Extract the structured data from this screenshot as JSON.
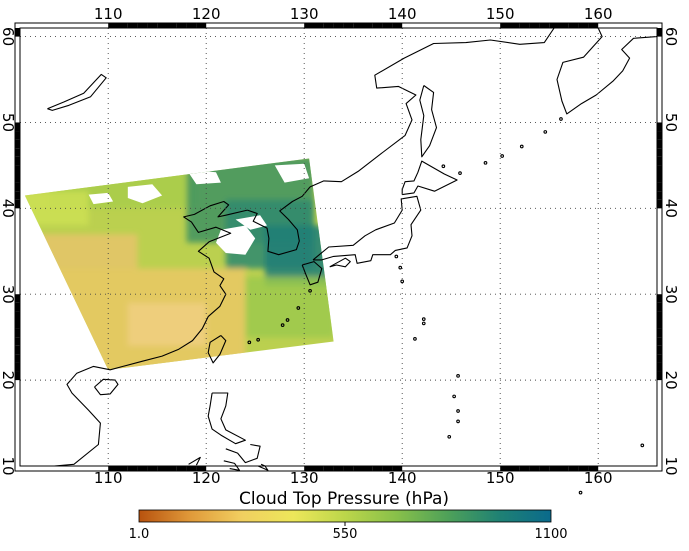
{
  "map": {
    "projection": "equirectangular",
    "lon_range": [
      101,
      166
    ],
    "lat_range": [
      10,
      61
    ],
    "lon_ticks": [
      "110",
      "120",
      "130",
      "140",
      "150",
      "160"
    ],
    "lat_ticks": [
      "10",
      "20",
      "30",
      "40",
      "50",
      "60"
    ],
    "grid": "dotted",
    "frame": "checkered-border",
    "swath_corners_lonlat": [
      [
        101.5,
        41.5
      ],
      [
        130.5,
        45.8
      ],
      [
        133,
        24.5
      ],
      [
        110,
        21.2
      ]
    ]
  },
  "colorbar": {
    "title": "Cloud Top Pressure (hPa)",
    "min_label": "1.0",
    "mid_label": "550",
    "max_label": "1100",
    "stops": [
      "#b8520e",
      "#e09a3a",
      "#f1cf60",
      "#ede75a",
      "#bcd64a",
      "#88c04a",
      "#4ea159",
      "#1f8174",
      "#0a6a8c"
    ]
  },
  "colors": {
    "coastline": "#000000",
    "grid": "#555555",
    "swath_high": "#eac865",
    "swath_mid": "#bbd04f",
    "swath_low": "#3f9360",
    "no_data": "#ffffff"
  }
}
